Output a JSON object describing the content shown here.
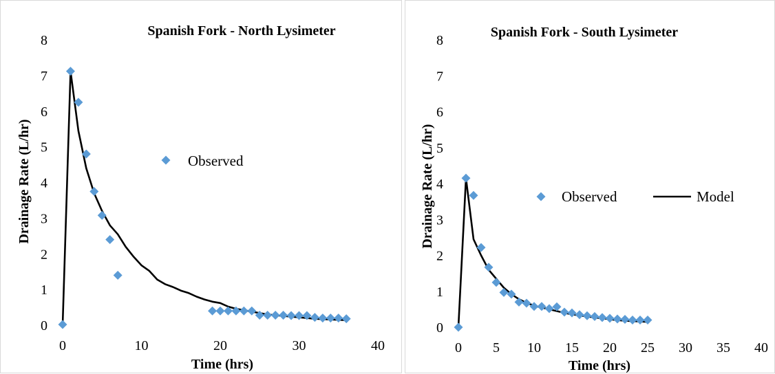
{
  "chart_data": [
    {
      "type": "scatter",
      "title": "Spanish Fork - North Lysimeter",
      "xlabel": "Time (hrs)",
      "ylabel": "Drainage Rate (L/hr)",
      "xlim": [
        0,
        40
      ],
      "ylim": [
        0,
        8
      ],
      "xticks": [
        0,
        10,
        20,
        30,
        40
      ],
      "yticks": [
        0,
        1,
        2,
        3,
        4,
        5,
        6,
        7,
        8
      ],
      "grid": false,
      "legend": {
        "position": "center-left",
        "entries": [
          "Observed"
        ]
      },
      "series": [
        {
          "name": "Observed",
          "kind": "marker",
          "marker": "diamond",
          "color": "#5b9bd5",
          "x": [
            0,
            1,
            2,
            3,
            4,
            5,
            6,
            7,
            19,
            20,
            21,
            22,
            23,
            24,
            25,
            26,
            27,
            28,
            29,
            30,
            31,
            32,
            33,
            34,
            35,
            36
          ],
          "y": [
            0.02,
            7.12,
            6.25,
            4.8,
            3.75,
            3.08,
            2.4,
            1.4,
            0.4,
            0.4,
            0.4,
            0.4,
            0.4,
            0.4,
            0.28,
            0.28,
            0.28,
            0.28,
            0.27,
            0.27,
            0.27,
            0.22,
            0.2,
            0.2,
            0.2,
            0.18
          ]
        },
        {
          "name": "Model",
          "kind": "line",
          "color": "#000000",
          "x": [
            0,
            1,
            2,
            3,
            4,
            5,
            6,
            7,
            8,
            9,
            10,
            11,
            12,
            13,
            14,
            15,
            16,
            17,
            18,
            19,
            20,
            21,
            22,
            23,
            24,
            25,
            26,
            27,
            28,
            29,
            30,
            31,
            32,
            33,
            34,
            35,
            36
          ],
          "y": [
            0,
            7.12,
            5.45,
            4.4,
            3.7,
            3.2,
            2.8,
            2.55,
            2.2,
            1.92,
            1.68,
            1.52,
            1.28,
            1.15,
            1.07,
            0.97,
            0.9,
            0.8,
            0.72,
            0.66,
            0.62,
            0.52,
            0.46,
            0.42,
            0.38,
            0.34,
            0.3,
            0.28,
            0.26,
            0.24,
            0.22,
            0.2,
            0.18,
            0.17,
            0.16,
            0.15,
            0.14
          ]
        }
      ]
    },
    {
      "type": "scatter",
      "title": "Spanish Fork - South Lysimeter",
      "xlabel": "Time (hrs)",
      "ylabel": "Drainage Rate (L/hr)",
      "xlim": [
        0,
        40
      ],
      "ylim": [
        0,
        8
      ],
      "xticks": [
        0,
        5,
        10,
        15,
        20,
        25,
        30,
        35,
        40
      ],
      "yticks": [
        0,
        1,
        2,
        3,
        4,
        5,
        6,
        7,
        8
      ],
      "grid": false,
      "legend": {
        "position": "center-right",
        "entries": [
          "Observed",
          "Model"
        ]
      },
      "series": [
        {
          "name": "Observed",
          "kind": "marker",
          "marker": "diamond",
          "color": "#5b9bd5",
          "x": [
            0,
            1,
            2,
            3,
            4,
            5,
            6,
            7,
            8,
            9,
            10,
            11,
            12,
            13,
            14,
            15,
            16,
            17,
            18,
            19,
            20,
            21,
            22,
            23,
            24,
            25
          ],
          "y": [
            0.0,
            4.15,
            3.67,
            2.22,
            1.67,
            1.25,
            0.97,
            0.92,
            0.7,
            0.67,
            0.58,
            0.58,
            0.52,
            0.57,
            0.42,
            0.4,
            0.35,
            0.32,
            0.3,
            0.27,
            0.25,
            0.23,
            0.22,
            0.2,
            0.2,
            0.2
          ]
        },
        {
          "name": "Model",
          "kind": "line",
          "color": "#000000",
          "x": [
            0,
            1,
            2,
            3,
            4,
            5,
            6,
            7,
            8,
            9,
            10,
            11,
            12,
            13,
            14,
            15,
            16,
            17,
            18,
            19,
            20,
            21,
            22,
            23,
            24,
            25
          ],
          "y": [
            0,
            4.15,
            2.45,
            2.0,
            1.6,
            1.35,
            1.1,
            0.92,
            0.78,
            0.68,
            0.6,
            0.55,
            0.5,
            0.45,
            0.4,
            0.36,
            0.33,
            0.3,
            0.27,
            0.25,
            0.22,
            0.2,
            0.18,
            0.17,
            0.16,
            0.15
          ]
        }
      ]
    }
  ]
}
